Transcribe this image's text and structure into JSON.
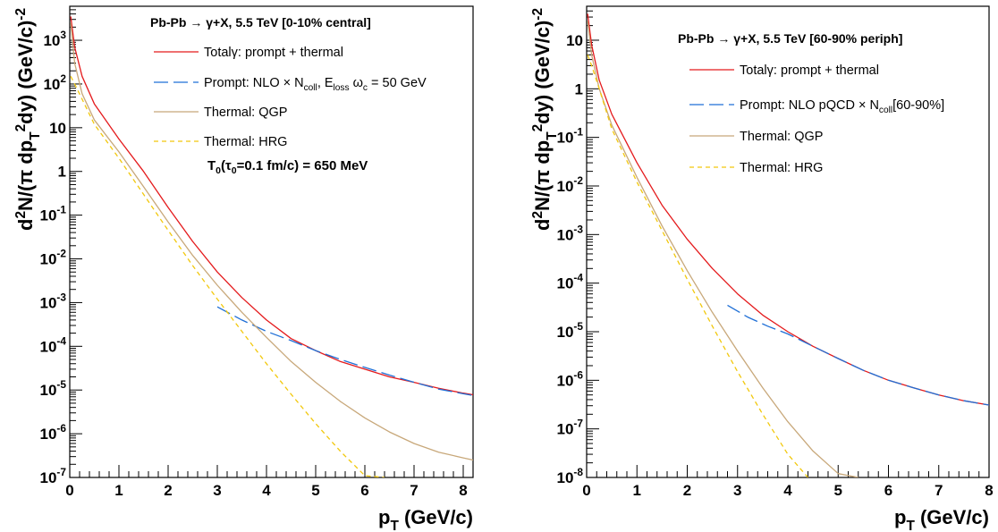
{
  "chart_data": [
    {
      "type": "line",
      "header": [
        "Pb-Pb ",
        "→",
        " γ+X, 5.5 TeV  [0-10% central]"
      ],
      "annotation": [
        "T",
        "0",
        "(τ",
        "0",
        "=0.1 fm/c) = 650 MeV"
      ],
      "xlabel": [
        "p",
        "T",
        " (GeV/c)"
      ],
      "ylabel": [
        "d",
        "2",
        "N/(π dp",
        "T",
        "2",
        "dy) (GeV/c)",
        "-2"
      ],
      "xlim": [
        0,
        8.2
      ],
      "ylim": [
        1e-07,
        6000
      ],
      "log_y": true,
      "x_ticks": [
        "0",
        "1",
        "2",
        "3",
        "4",
        "5",
        "6",
        "7",
        "8"
      ],
      "y_ticks": [
        {
          "b": "10",
          "e": "-7",
          "v": 1e-07
        },
        {
          "b": "10",
          "e": "-6",
          "v": 1e-06
        },
        {
          "b": "10",
          "e": "-5",
          "v": 1e-05
        },
        {
          "b": "10",
          "e": "-4",
          "v": 0.0001
        },
        {
          "b": "10",
          "e": "-3",
          "v": 0.001
        },
        {
          "b": "10",
          "e": "-2",
          "v": 0.01
        },
        {
          "b": "10",
          "e": "-1",
          "v": 0.1
        },
        {
          "b": "1",
          "e": "",
          "v": 1
        },
        {
          "b": "10",
          "e": "",
          "v": 10
        },
        {
          "b": "10",
          "e": "2",
          "v": 100
        },
        {
          "b": "10",
          "e": "3",
          "v": 1000
        }
      ],
      "series": [
        {
          "name": [
            "Total",
            "γ",
            ": prompt + thermal"
          ],
          "color": "#e41a1c",
          "dash": "",
          "x": [
            0.02,
            0.1,
            0.25,
            0.5,
            1.0,
            1.5,
            2.0,
            2.5,
            3.0,
            3.5,
            4.0,
            4.5,
            5.0,
            5.5,
            6.0,
            6.5,
            7.0,
            7.5,
            8.0,
            8.2
          ],
          "y": [
            3500,
            700,
            150,
            35,
            5.5,
            1.0,
            0.15,
            0.025,
            0.005,
            0.0013,
            0.0004,
            0.00015,
            8e-05,
            4.5e-05,
            3e-05,
            2e-05,
            1.5e-05,
            1.1e-05,
            8.5e-06,
            7.8e-06
          ]
        },
        {
          "name": [
            "Prompt: NLO ",
            "×",
            " N",
            "coll",
            ", E",
            "loss",
            " ω",
            "c",
            " = 50 GeV"
          ],
          "color": "#1f6fd6",
          "dash": "16,6",
          "x": [
            3.0,
            3.5,
            4.0,
            4.5,
            5.0,
            5.5,
            6.0,
            6.5,
            7.0,
            7.5,
            8.0,
            8.2
          ],
          "y": [
            0.0008,
            0.0004,
            0.00022,
            0.000135,
            8e-05,
            5e-05,
            3.3e-05,
            2.2e-05,
            1.5e-05,
            1.05e-05,
            8.2e-06,
            7.5e-06
          ]
        },
        {
          "name": [
            "Thermal: QGP"
          ],
          "color": "#c8a87a",
          "dash": "",
          "x": [
            0.02,
            0.1,
            0.25,
            0.5,
            1.0,
            1.5,
            2.0,
            2.5,
            3.0,
            3.5,
            4.0,
            4.5,
            5.0,
            5.5,
            6.0,
            6.5,
            7.0,
            7.5,
            8.0,
            8.2
          ],
          "y": [
            2500,
            300,
            60,
            15,
            2.8,
            0.45,
            0.07,
            0.012,
            0.0025,
            0.0006,
            0.00016,
            4.5e-05,
            1.5e-05,
            5.5e-06,
            2.3e-06,
            1.1e-06,
            6e-07,
            3.8e-07,
            2.8e-07,
            2.5e-07
          ]
        },
        {
          "name": [
            "Thermal: HRG"
          ],
          "color": "#f2c80c",
          "dash": "5,4",
          "x": [
            0.02,
            0.1,
            0.25,
            0.5,
            1.0,
            1.5,
            2.0,
            2.5,
            3.0,
            3.5,
            4.0,
            4.5,
            5.0,
            5.5,
            6.0,
            6.4
          ],
          "y": [
            150,
            100,
            45,
            12,
            2.0,
            0.3,
            0.045,
            0.007,
            0.0012,
            0.00022,
            4e-05,
            8e-06,
            1.7e-06,
            4e-07,
            1.1e-07,
            1e-07
          ]
        }
      ]
    },
    {
      "type": "line",
      "header": [
        "Pb-Pb ",
        "→",
        " γ+X, 5.5 TeV [60-90% periph]"
      ],
      "annotation": [],
      "xlabel": [
        "p",
        "T",
        " (GeV/c)"
      ],
      "ylabel": [
        "d",
        "2",
        "N/(π dp",
        "T",
        "2",
        "dy) (GeV/c)",
        "-2"
      ],
      "xlim": [
        0,
        8
      ],
      "ylim": [
        1e-08,
        50
      ],
      "log_y": true,
      "x_ticks": [
        "0",
        "1",
        "2",
        "3",
        "4",
        "5",
        "6",
        "7",
        "8"
      ],
      "y_ticks": [
        {
          "b": "10",
          "e": "-8",
          "v": 1e-08
        },
        {
          "b": "10",
          "e": "-7",
          "v": 1e-07
        },
        {
          "b": "10",
          "e": "-6",
          "v": 1e-06
        },
        {
          "b": "10",
          "e": "-5",
          "v": 1e-05
        },
        {
          "b": "10",
          "e": "-4",
          "v": 0.0001
        },
        {
          "b": "10",
          "e": "-3",
          "v": 0.001
        },
        {
          "b": "10",
          "e": "-2",
          "v": 0.01
        },
        {
          "b": "10",
          "e": "-1",
          "v": 0.1
        },
        {
          "b": "1",
          "e": "",
          "v": 1
        },
        {
          "b": "10",
          "e": "",
          "v": 10
        }
      ],
      "series": [
        {
          "name": [
            "Total",
            "γ",
            ": prompt + thermal"
          ],
          "color": "#e41a1c",
          "dash": "",
          "x": [
            0.02,
            0.1,
            0.25,
            0.5,
            1.0,
            1.5,
            2.0,
            2.5,
            3.0,
            3.5,
            4.0,
            4.5,
            5.0,
            5.5,
            6.0,
            6.5,
            7.0,
            7.5,
            8.0
          ],
          "y": [
            35,
            8,
            1.5,
            0.3,
            0.03,
            0.004,
            0.0008,
            0.0002,
            6e-05,
            2.2e-05,
            1e-05,
            5e-06,
            2.8e-06,
            1.6e-06,
            1e-06,
            7e-07,
            5e-07,
            3.8e-07,
            3.1e-07
          ]
        },
        {
          "name": [
            "Prompt: NLO pQCD ",
            "×",
            " N",
            "coll",
            "[60-90%]"
          ],
          "color": "#1f6fd6",
          "dash": "16,6",
          "x": [
            2.8,
            3.2,
            3.6,
            4.0,
            4.5,
            5.0,
            5.5,
            6.0,
            6.5,
            7.0,
            7.5,
            8.0
          ],
          "y": [
            3.5e-05,
            2e-05,
            1.3e-05,
            9e-06,
            5e-06,
            2.8e-06,
            1.6e-06,
            1e-06,
            7e-07,
            5e-07,
            3.8e-07,
            3.1e-07
          ]
        },
        {
          "name": [
            "Thermal: QGP"
          ],
          "color": "#c8a87a",
          "dash": "",
          "x": [
            0.02,
            0.1,
            0.25,
            0.5,
            1.0,
            1.5,
            2.0,
            2.5,
            3.0,
            3.5,
            4.0,
            4.5,
            5.0,
            5.4
          ],
          "y": [
            25,
            5,
            1.0,
            0.18,
            0.015,
            0.0015,
            0.00018,
            2.5e-05,
            4e-06,
            7e-07,
            1.4e-07,
            3.5e-08,
            1.2e-08,
            1e-08
          ]
        },
        {
          "name": [
            "Thermal: HRG"
          ],
          "color": "#f2c80c",
          "dash": "5,4",
          "x": [
            0.02,
            0.1,
            0.25,
            0.5,
            1.0,
            1.5,
            2.0,
            2.5,
            3.0,
            3.5,
            4.0,
            4.4
          ],
          "y": [
            5,
            3,
            1.0,
            0.15,
            0.012,
            0.0012,
            0.00012,
            1.3e-05,
            1.5e-06,
            2e-07,
            3e-08,
            1e-08
          ]
        }
      ]
    }
  ]
}
